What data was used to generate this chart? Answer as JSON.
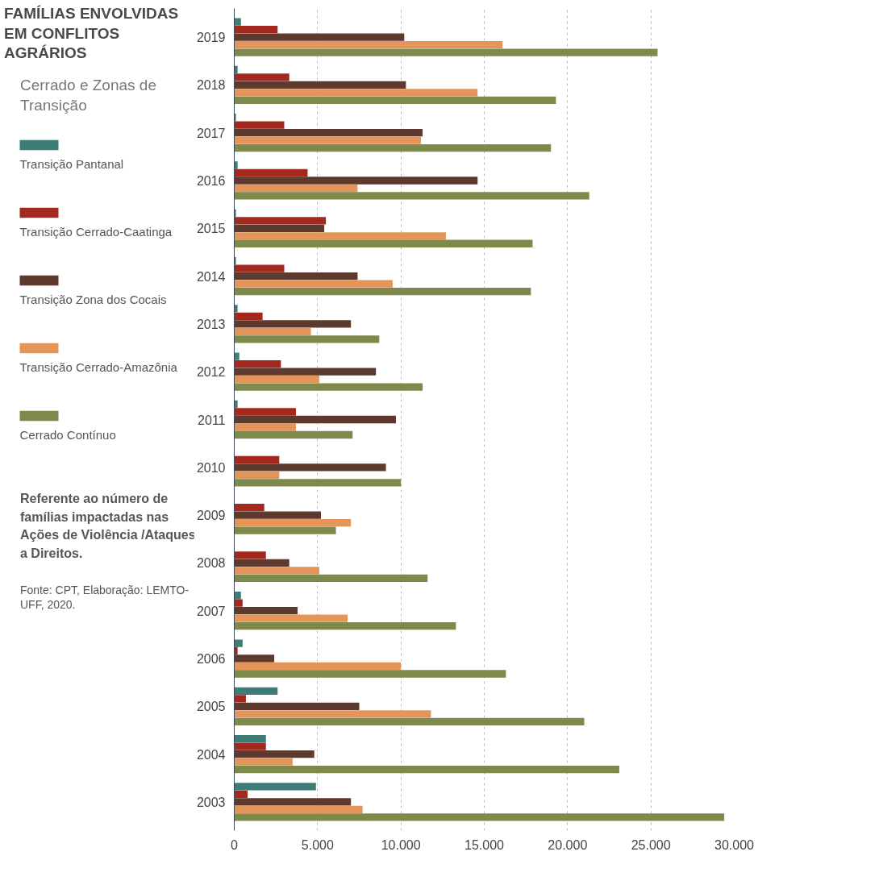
{
  "chart_data": {
    "type": "bar",
    "orientation": "horizontal",
    "title": "FAMÍLIAS ENVOLVIDAS EM CONFLITOS AGRÁRIOS",
    "subtitle": "Cerrado e Zonas de Transição",
    "categories": [
      "2019",
      "2018",
      "2017",
      "2016",
      "2015",
      "2014",
      "2013",
      "2012",
      "2011",
      "2010",
      "2009",
      "2008",
      "2007",
      "2006",
      "2005",
      "2004",
      "2003"
    ],
    "series": [
      {
        "name": "Transição Pantanal",
        "color": "#3e7c78",
        "values": [
          400,
          200,
          100,
          200,
          100,
          100,
          200,
          300,
          200,
          0,
          0,
          0,
          400,
          500,
          2600,
          1900,
          4900
        ]
      },
      {
        "name": "Transição Cerrado-Caatinga",
        "color": "#a3291f",
        "values": [
          2600,
          3300,
          3000,
          4400,
          5500,
          3000,
          1700,
          2800,
          3700,
          2700,
          1800,
          1900,
          500,
          200,
          700,
          1900,
          800
        ]
      },
      {
        "name": "Transição Zona dos Cocais",
        "color": "#5e3a2e",
        "values": [
          10200,
          10300,
          11300,
          14600,
          5400,
          7400,
          7000,
          8500,
          9700,
          9100,
          5200,
          3300,
          3800,
          2400,
          7500,
          4800,
          7000
        ]
      },
      {
        "name": "Transição Cerrado-Amazônia",
        "color": "#e3955a",
        "values": [
          16100,
          14600,
          11200,
          7400,
          12700,
          9500,
          4600,
          5100,
          3700,
          2700,
          7000,
          5100,
          6800,
          10000,
          11800,
          3500,
          7700
        ]
      },
      {
        "name": "Cerrado Contínuo",
        "color": "#7e8a4c",
        "values": [
          25400,
          19300,
          19000,
          21300,
          17900,
          17800,
          8700,
          11300,
          7100,
          10000,
          6100,
          11600,
          13300,
          16300,
          21000,
          23100,
          29400
        ]
      }
    ],
    "xlim": [
      0,
      30000
    ],
    "xticks": [
      0,
      {
        "value": 5000,
        "label": "5.000"
      },
      {
        "value": 10000,
        "label": "10.000"
      },
      {
        "value": 15000,
        "label": "15.000"
      },
      {
        "value": 20000,
        "label": "20.000"
      },
      {
        "value": 25000,
        "label": "25.000"
      },
      {
        "value": 30000,
        "label": "30.000"
      }
    ],
    "grid": "x",
    "legend": "left",
    "annotations": [
      "Referente ao número de famílias impactadas nas Ações de Violência /Ataques a Direitos.",
      "Fonte: CPT, Elaboração: LEMTO-UFF, 2020."
    ]
  }
}
